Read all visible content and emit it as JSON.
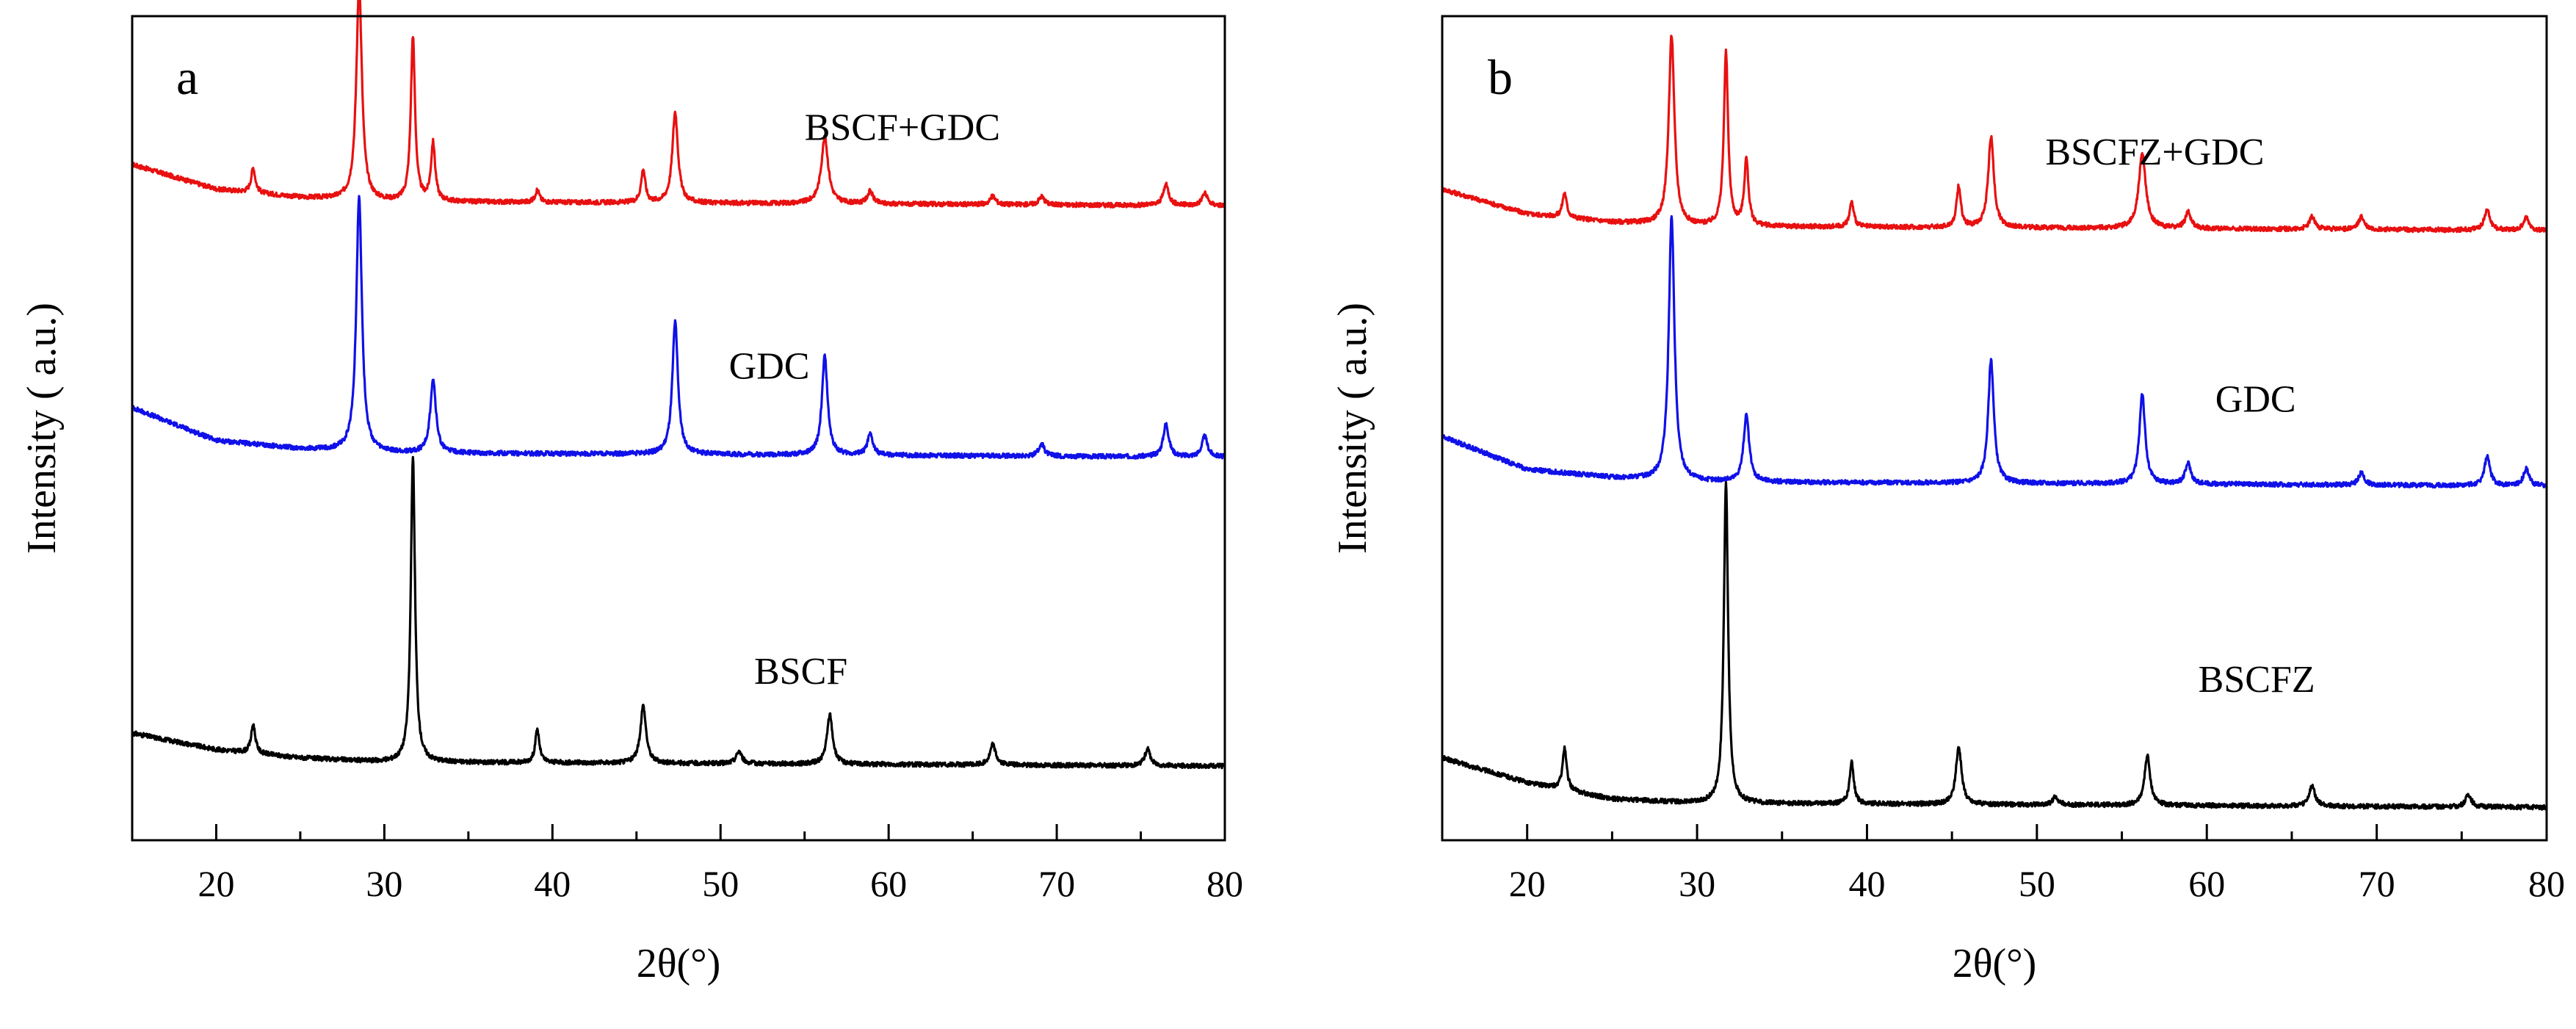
{
  "colors": {
    "black": "#000000",
    "blue": "#1010e8",
    "red": "#e81010"
  },
  "chart_data": [
    {
      "type": "line",
      "panel_label": "a",
      "xlabel": "2θ(°)",
      "ylabel": "Intensity ( a.u.)",
      "xlim": [
        15,
        80
      ],
      "ylim": [
        0,
        100
      ],
      "xticks": [
        "20",
        "30",
        "40",
        "50",
        "60",
        "70",
        "80"
      ],
      "tick_values": [
        20,
        30,
        40,
        50,
        60,
        70,
        80
      ],
      "series": [
        {
          "name": "BSCF+GDC",
          "color": "#e81010",
          "baseline": 77,
          "label_x": 55,
          "label_y": 85,
          "bg": [
            [
              15,
              5
            ],
            [
              20,
              2
            ],
            [
              25,
              1
            ],
            [
              30,
              0.5
            ],
            [
              80,
              0
            ]
          ],
          "peaks": [
            [
              22.2,
              3,
              0.15
            ],
            [
              28.5,
              26,
              0.2
            ],
            [
              31.7,
              20,
              0.15
            ],
            [
              32.9,
              7,
              0.15
            ],
            [
              39.1,
              1.5,
              0.15
            ],
            [
              45.4,
              4,
              0.15
            ],
            [
              47.3,
              11,
              0.2
            ],
            [
              56.2,
              8,
              0.25
            ],
            [
              58.9,
              1.5,
              0.2
            ],
            [
              66.2,
              1,
              0.2
            ],
            [
              69.1,
              1,
              0.2
            ],
            [
              76.5,
              2.5,
              0.2
            ],
            [
              78.8,
              1.5,
              0.2
            ]
          ]
        },
        {
          "name": "GDC",
          "color": "#1010e8",
          "baseline": 46.5,
          "label_x": 50.5,
          "label_y": 56,
          "bg": [
            [
              15,
              6
            ],
            [
              20,
              2
            ],
            [
              25,
              1
            ],
            [
              30,
              0.5
            ],
            [
              80,
              0
            ]
          ],
          "peaks": [
            [
              28.5,
              31,
              0.2
            ],
            [
              32.9,
              9,
              0.2
            ],
            [
              47.3,
              16,
              0.2
            ],
            [
              56.2,
              12,
              0.2
            ],
            [
              58.9,
              2.5,
              0.2
            ],
            [
              69.1,
              1.5,
              0.2
            ],
            [
              76.5,
              4,
              0.2
            ],
            [
              78.8,
              2.5,
              0.2
            ]
          ]
        },
        {
          "name": "BSCF",
          "color": "#000000",
          "baseline": 9,
          "label_x": 52,
          "label_y": 19,
          "bg": [
            [
              15,
              4
            ],
            [
              20,
              2
            ],
            [
              25,
              1
            ],
            [
              30,
              0.5
            ],
            [
              80,
              0
            ]
          ],
          "peaks": [
            [
              22.2,
              3.5,
              0.15
            ],
            [
              31.7,
              37,
              0.15
            ],
            [
              39.1,
              4,
              0.15
            ],
            [
              45.4,
              7,
              0.2
            ],
            [
              51.1,
              1.5,
              0.2
            ],
            [
              56.5,
              6,
              0.2
            ],
            [
              66.2,
              2.5,
              0.2
            ],
            [
              75.4,
              2,
              0.2
            ]
          ]
        }
      ]
    },
    {
      "type": "line",
      "panel_label": "b",
      "xlabel": "2θ(°)",
      "ylabel": "Intensity ( a.u.)",
      "xlim": [
        15,
        80
      ],
      "ylim": [
        0,
        100
      ],
      "xticks": [
        "20",
        "30",
        "40",
        "50",
        "60",
        "70",
        "80"
      ],
      "tick_values": [
        20,
        30,
        40,
        50,
        60,
        70,
        80
      ],
      "series": [
        {
          "name": "BSCFZ+GDC",
          "color": "#e81010",
          "baseline": 74,
          "label_x": 50.5,
          "label_y": 82,
          "bg": [
            [
              15,
              5
            ],
            [
              20,
              2
            ],
            [
              25,
              1
            ],
            [
              30,
              0.5
            ],
            [
              80,
              0
            ]
          ],
          "peaks": [
            [
              22.2,
              3,
              0.15
            ],
            [
              28.5,
              23,
              0.2
            ],
            [
              31.7,
              21,
              0.15
            ],
            [
              32.9,
              8,
              0.15
            ],
            [
              39.1,
              3,
              0.15
            ],
            [
              45.4,
              5,
              0.15
            ],
            [
              47.3,
              11,
              0.2
            ],
            [
              56.2,
              9,
              0.25
            ],
            [
              58.9,
              2,
              0.2
            ],
            [
              66.2,
              1.5,
              0.2
            ],
            [
              69.1,
              1.5,
              0.2
            ],
            [
              76.5,
              2.5,
              0.2
            ],
            [
              78.8,
              1.5,
              0.2
            ]
          ]
        },
        {
          "name": "GDC",
          "color": "#1010e8",
          "baseline": 43,
          "label_x": 60.5,
          "label_y": 52,
          "bg": [
            [
              15,
              6
            ],
            [
              20,
              2
            ],
            [
              25,
              1
            ],
            [
              30,
              0.5
            ],
            [
              80,
              0
            ]
          ],
          "peaks": [
            [
              28.5,
              32,
              0.2
            ],
            [
              32.9,
              8,
              0.2
            ],
            [
              47.3,
              15,
              0.2
            ],
            [
              56.2,
              11,
              0.2
            ],
            [
              58.9,
              2.5,
              0.2
            ],
            [
              69.1,
              1.5,
              0.2
            ],
            [
              76.5,
              3.5,
              0.2
            ],
            [
              78.8,
              2,
              0.2
            ]
          ]
        },
        {
          "name": "BSCFZ",
          "color": "#000000",
          "baseline": 4,
          "label_x": 59.5,
          "label_y": 18,
          "bg": [
            [
              15,
              6
            ],
            [
              20,
              3
            ],
            [
              25,
              1
            ],
            [
              30,
              0.5
            ],
            [
              80,
              0
            ]
          ],
          "peaks": [
            [
              22.2,
              5,
              0.15
            ],
            [
              31.7,
              39,
              0.15
            ],
            [
              39.1,
              5,
              0.15
            ],
            [
              45.4,
              7,
              0.2
            ],
            [
              51.1,
              1,
              0.2
            ],
            [
              56.5,
              6,
              0.2
            ],
            [
              66.2,
              2.5,
              0.2
            ],
            [
              75.4,
              1.5,
              0.2
            ]
          ]
        }
      ]
    }
  ]
}
